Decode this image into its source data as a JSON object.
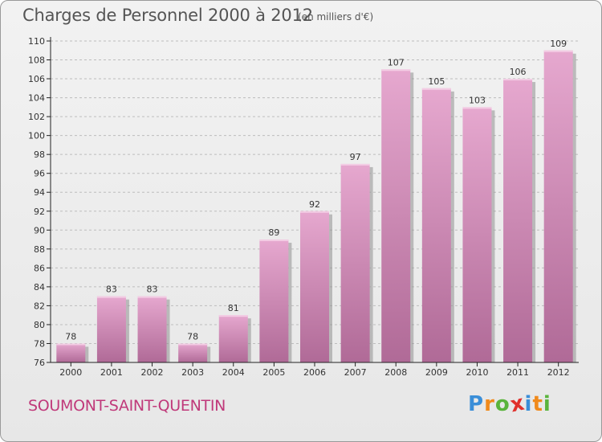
{
  "title": "Charges de Personnel 2000 à 2012",
  "subtitle": "(en milliers d'€)",
  "city": "SOUMONT-SAINT-QUENTIN",
  "logo": {
    "text": "Proxiti",
    "letters": [
      "P",
      "r",
      "o",
      "x",
      "i",
      "t",
      "i"
    ],
    "colors": [
      "#3a8ed8",
      "#f08a1c",
      "#5ab43c",
      "#e0302c",
      "#3a8ed8",
      "#f08a1c",
      "#5ab43c"
    ]
  },
  "colors": {
    "bar_top": "#e6a8cf",
    "bar_bottom": "#b06a97",
    "bar_shadow": "#8f8f8f",
    "grid": "#bdbdbd",
    "axis": "#222222",
    "title_text": "#555555",
    "city_text": "#c0397a"
  },
  "chart_data": {
    "type": "bar",
    "title": "Charges de Personnel 2000 à 2012",
    "subtitle": "(en milliers d'€)",
    "xlabel": "",
    "ylabel": "",
    "categories": [
      "2000",
      "2001",
      "2002",
      "2003",
      "2004",
      "2005",
      "2006",
      "2007",
      "2008",
      "2009",
      "2010",
      "2011",
      "2012"
    ],
    "values": [
      78,
      83,
      83,
      78,
      81,
      89,
      92,
      97,
      107,
      105,
      103,
      106,
      109
    ],
    "ylim": [
      76,
      110
    ],
    "yticks": [
      76,
      78,
      80,
      82,
      84,
      86,
      88,
      90,
      92,
      94,
      96,
      98,
      100,
      102,
      104,
      106,
      108,
      110
    ],
    "grid": true,
    "grid_style": "dashed horizontal",
    "data_labels": true,
    "legend": "none"
  }
}
